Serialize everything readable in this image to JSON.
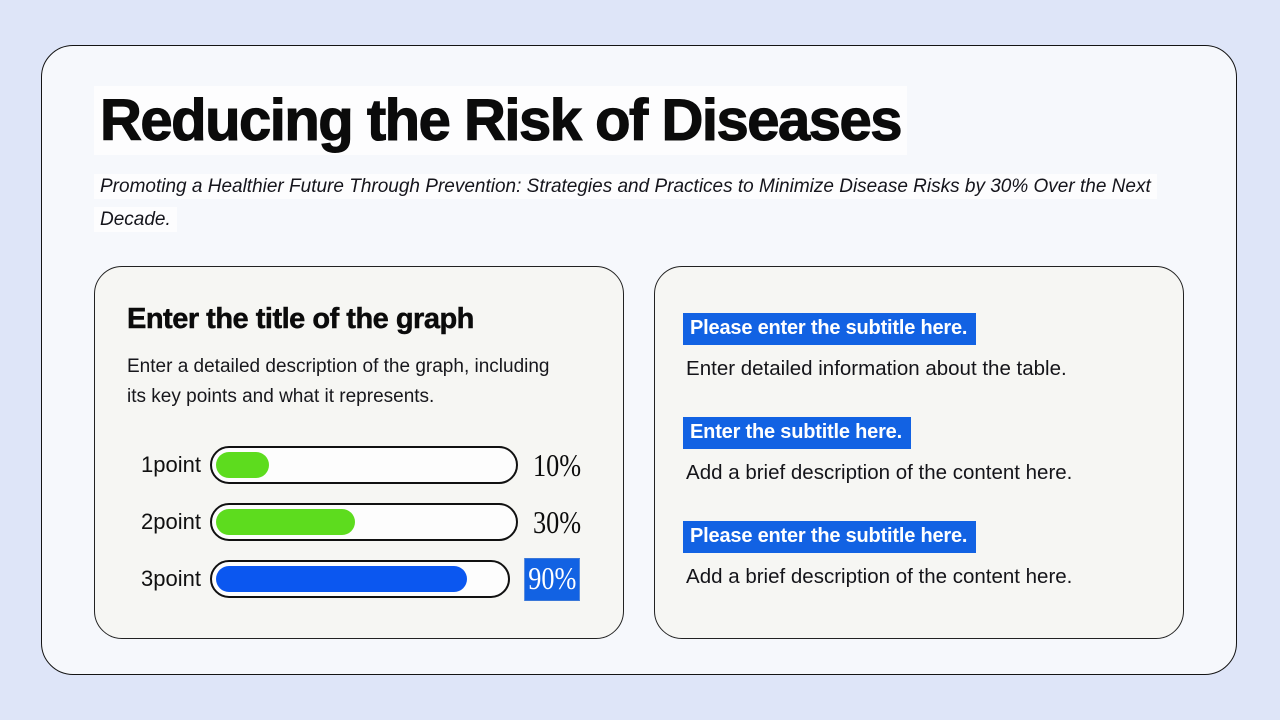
{
  "slide": {
    "title": "Reducing the Risk of Diseases",
    "subtitle": "Promoting a Healthier Future Through Prevention: Strategies and Practices to Minimize Disease Risks by 30% Over the Next Decade."
  },
  "graph_card": {
    "title": "Enter the title of the graph",
    "description": "Enter a detailed description of the graph, including its key points and what it represents.",
    "rows": [
      {
        "label": "1point",
        "value": "10%",
        "fill": "18%",
        "color": "#5ddc1e",
        "selected": false
      },
      {
        "label": "2point",
        "value": "30%",
        "fill": "47%",
        "color": "#5ddc1e",
        "selected": false
      },
      {
        "label": "3point",
        "value": "90%",
        "fill": "87%",
        "color": "#0b57f0",
        "selected": true
      }
    ]
  },
  "info_card": {
    "sections": [
      {
        "subtitle": "Please enter the subtitle here.",
        "description": "Enter detailed information about the table."
      },
      {
        "subtitle": "Enter the subtitle here.",
        "description": "Add a brief description of the content here."
      },
      {
        "subtitle": "Please enter the subtitle here.",
        "description": "Add a brief description of the content here."
      }
    ]
  },
  "colors": {
    "page_background": "#dee5f8",
    "slide_card": "#f6f8fc",
    "panel": "#f6f6f3",
    "highlight_blue": "#1262e3",
    "bar_green": "#5ddc1e",
    "bar_blue": "#0b57f0",
    "border": "#141414",
    "text": "#101010"
  },
  "chart_data": {
    "type": "bar",
    "orientation": "horizontal",
    "title": "Enter the title of the graph",
    "categories": [
      "1point",
      "2point",
      "3point"
    ],
    "values": [
      10,
      30,
      90
    ],
    "unit": "%",
    "xlim": [
      0,
      100
    ],
    "grid": false,
    "legend": false
  }
}
